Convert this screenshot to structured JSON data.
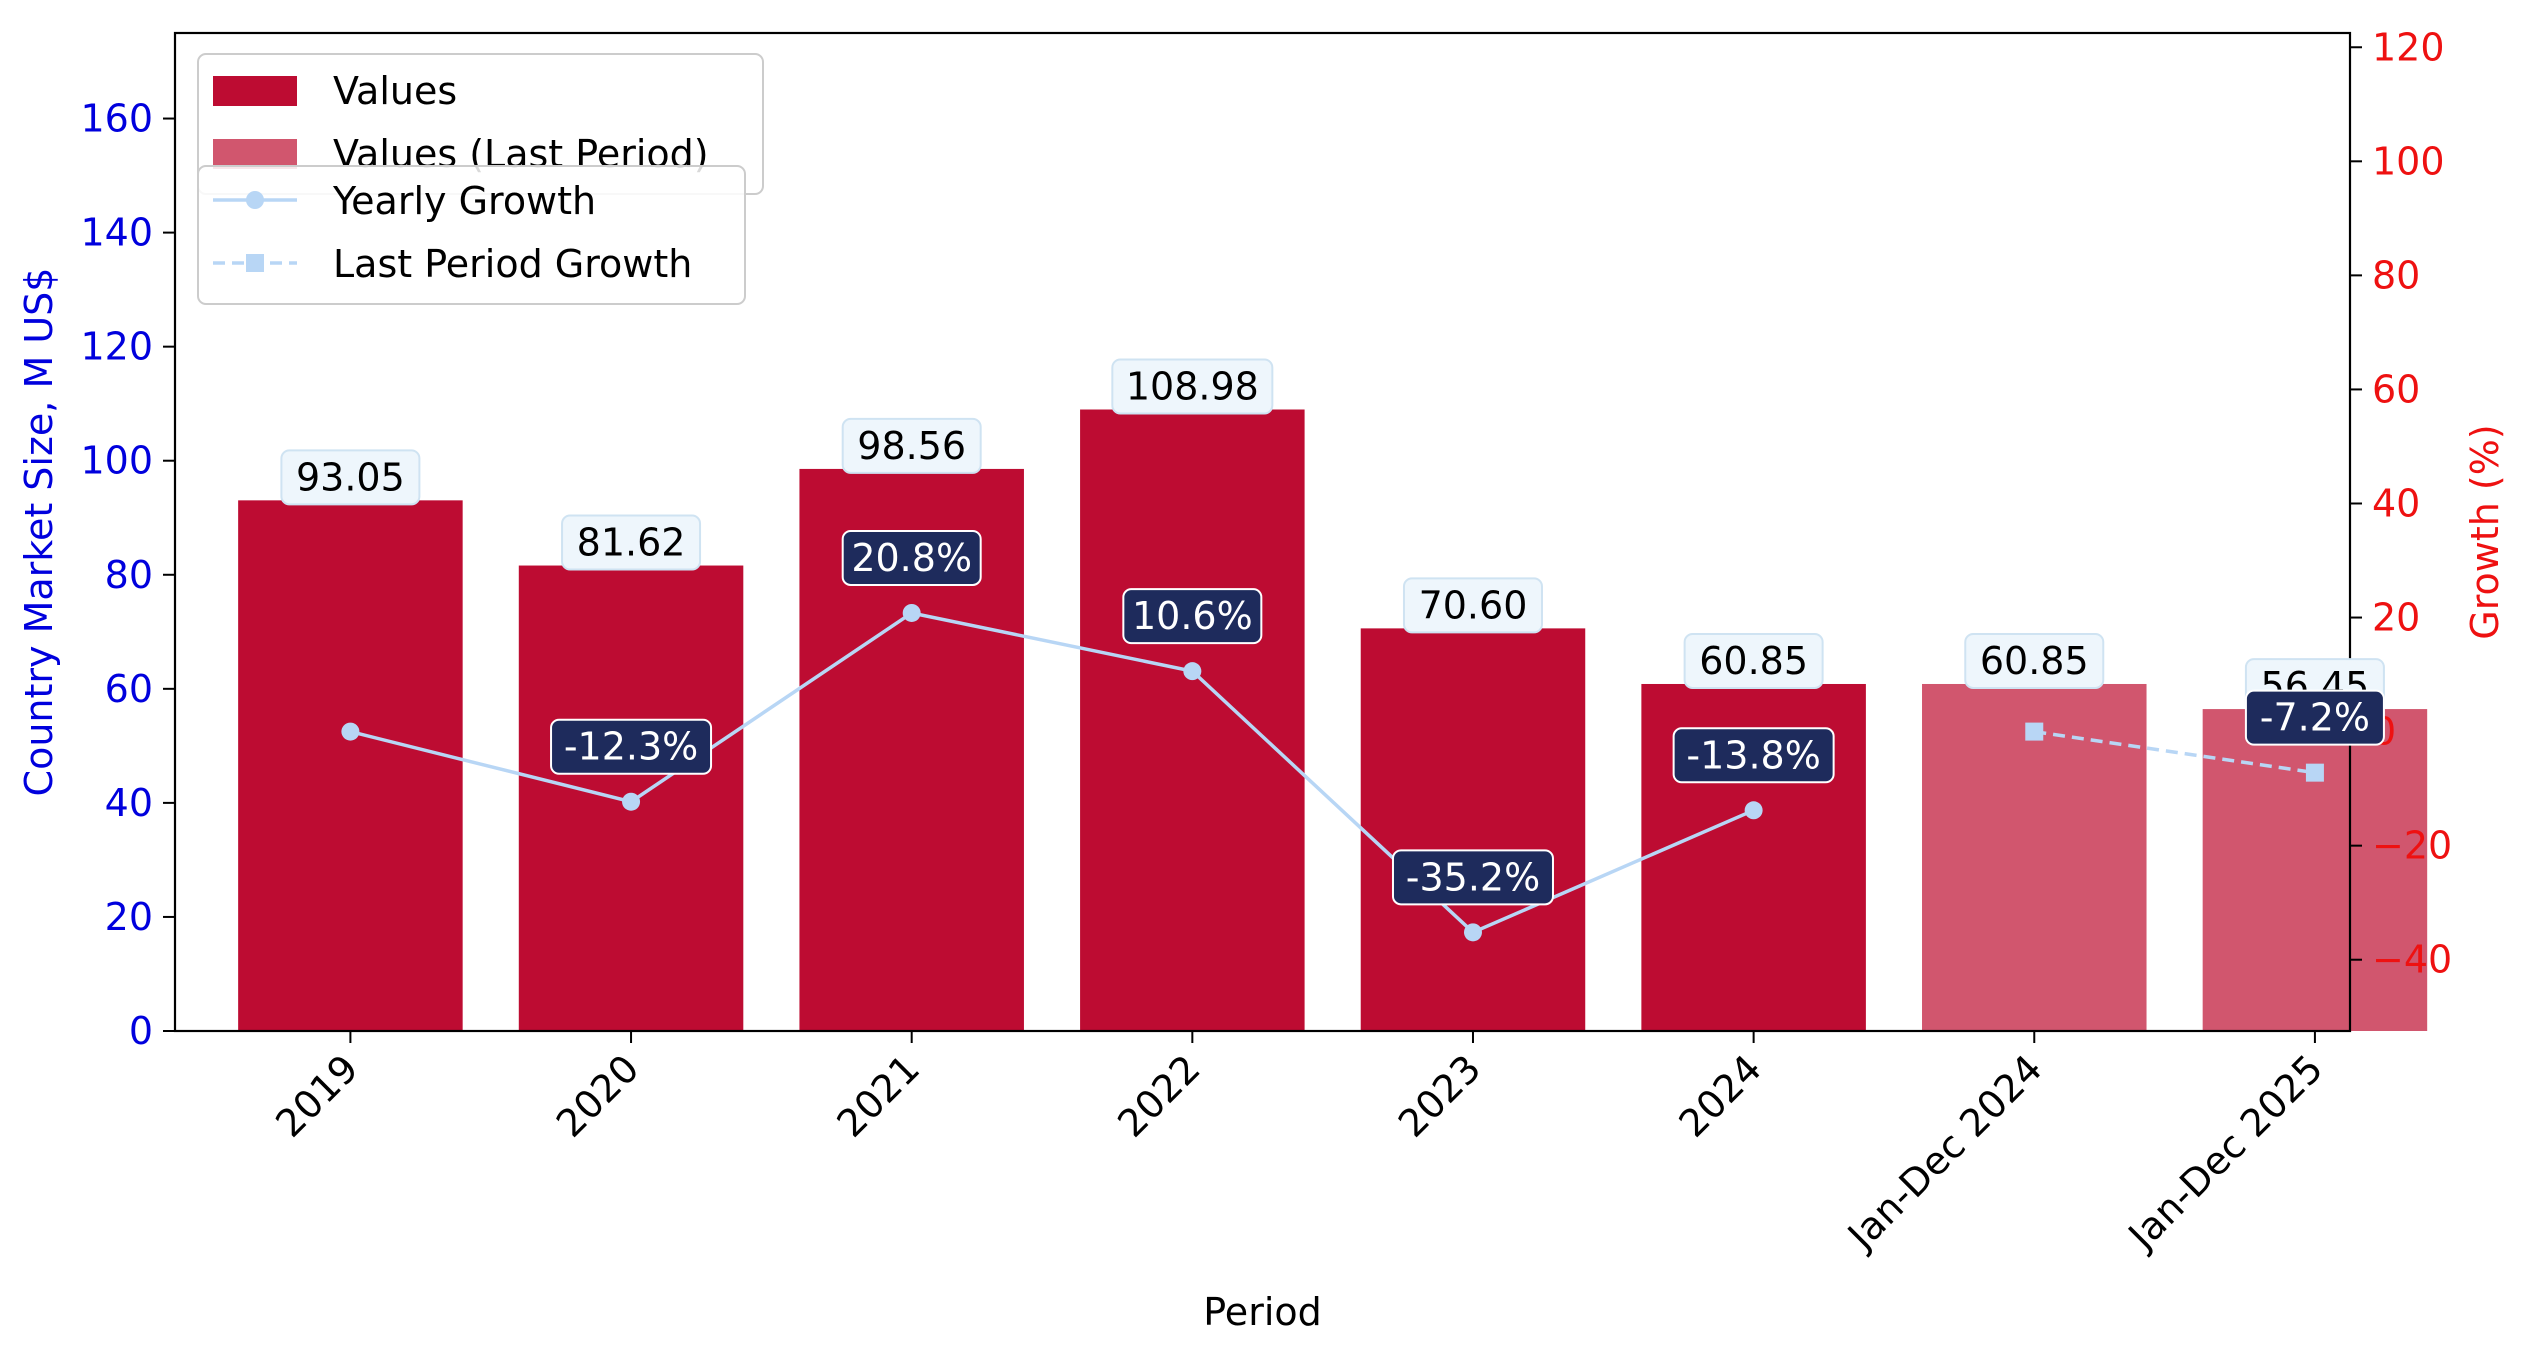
{
  "chart_data": {
    "type": "bar",
    "title": "",
    "xlabel": "Period",
    "ylabel_left": "Country Market Size, M US$",
    "ylabel_right": "Growth (%)",
    "ylim_left": [
      0,
      175
    ],
    "ylim_right": [
      -52.5,
      122.5
    ],
    "yticks_left": [
      0,
      20,
      40,
      60,
      80,
      100,
      120,
      140,
      160
    ],
    "yticks_right": [
      -40,
      -20,
      0,
      20,
      40,
      60,
      80,
      100,
      120
    ],
    "ytick_labels_right": [
      "−40",
      "−20",
      "0",
      "20",
      "40",
      "60",
      "80",
      "100",
      "120"
    ],
    "grid": false,
    "categories": [
      "2019",
      "2020",
      "2021",
      "2022",
      "2023",
      "2024",
      "Jan-Dec 2024",
      "Jan-Dec 2025"
    ],
    "bars": {
      "values": [
        93.05,
        81.62,
        98.56,
        108.98,
        70.6,
        60.85,
        60.85,
        56.45
      ],
      "value_labels": [
        "93.05",
        "81.62",
        "98.56",
        "108.98",
        "70.60",
        "60.85",
        "60.85",
        "56.45"
      ],
      "is_last_period": [
        false,
        false,
        false,
        false,
        false,
        false,
        true,
        true
      ]
    },
    "yearly_growth": {
      "x_index": [
        0,
        1,
        2,
        3,
        4,
        5
      ],
      "values": [
        0,
        -12.3,
        20.8,
        10.6,
        -35.2,
        -13.8
      ],
      "labels": [
        "",
        "-12.3%",
        "20.8%",
        "10.6%",
        "-35.2%",
        "-13.8%"
      ]
    },
    "last_period_growth": {
      "x_index": [
        6,
        7
      ],
      "values": [
        0,
        -7.2
      ],
      "labels": [
        "",
        "-7.2%"
      ]
    },
    "legend_bars": [
      "Values",
      "Values (Last Period)"
    ],
    "legend_lines": [
      "Yearly Growth",
      "Last Period Growth"
    ],
    "legend_placement": "top-left",
    "colors": {
      "bar": "#bd0c32",
      "bar_last": "#d1566e",
      "line": "#b8d6f5",
      "left_axis": "#0000dd",
      "right_axis": "#ee1111",
      "growth_label_bg": "#1e2b5c",
      "value_label_bg": "#eef6fc"
    }
  }
}
